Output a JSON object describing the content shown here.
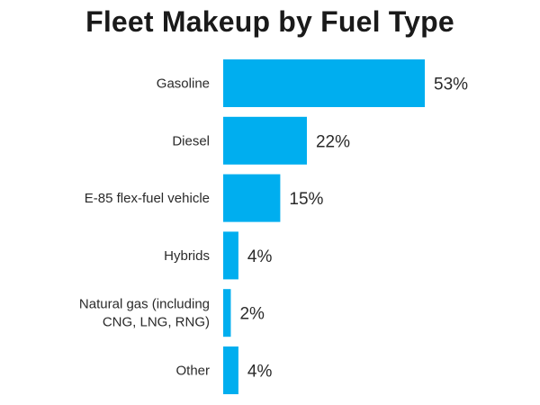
{
  "chart_data": {
    "type": "bar",
    "orientation": "horizontal",
    "title": "Fleet Makeup by Fuel Type",
    "categories": [
      [
        "Gasoline"
      ],
      [
        "Diesel"
      ],
      [
        "E-85 flex-fuel vehicle"
      ],
      [
        "Hybrids"
      ],
      [
        "Natural gas (including",
        "CNG, LNG, RNG)"
      ],
      [
        "Other"
      ]
    ],
    "values": [
      53,
      22,
      15,
      4,
      2,
      4
    ],
    "value_labels": [
      "53%",
      "22%",
      "15%",
      "4%",
      "2%",
      "4%"
    ],
    "unit": "%",
    "xlim": [
      0,
      53
    ],
    "grid": false,
    "legend": "none",
    "colors": {
      "bar": "#00AEEF"
    }
  }
}
